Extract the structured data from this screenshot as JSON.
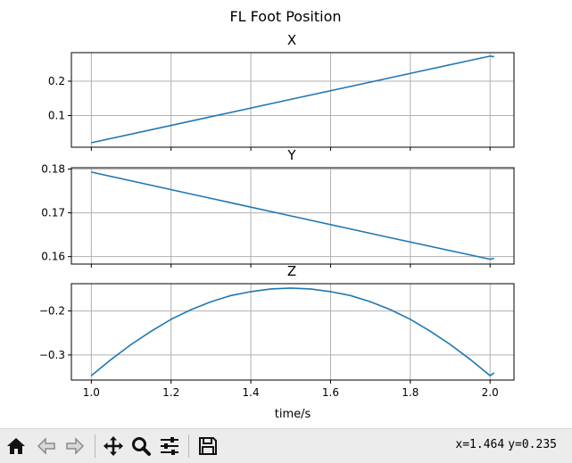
{
  "figure": {
    "suptitle": "FL Foot Position",
    "xlabel": "time/s"
  },
  "chart_data": [
    {
      "type": "line",
      "title": "X",
      "xlabel": "",
      "ylabel": "",
      "xlim": [
        0.95,
        2.06
      ],
      "ylim": [
        0.008,
        0.283
      ],
      "xticks": [
        1.0,
        1.2,
        1.4,
        1.6,
        1.8,
        2.0
      ],
      "yticks": [
        0.1,
        0.2
      ],
      "ytick_labels": [
        "0.1",
        "0.2"
      ],
      "grid": true,
      "series": [
        {
          "color": "#1f77b4",
          "x": [
            1.0,
            1.25,
            1.5,
            1.75,
            2.0,
            2.01
          ],
          "y": [
            0.021,
            0.084,
            0.147,
            0.21,
            0.273,
            0.271
          ]
        }
      ]
    },
    {
      "type": "line",
      "title": "Y",
      "xlabel": "",
      "ylabel": "",
      "xlim": [
        0.95,
        2.06
      ],
      "ylim": [
        0.1583,
        0.1803
      ],
      "xticks": [
        1.0,
        1.2,
        1.4,
        1.6,
        1.8,
        2.0
      ],
      "yticks": [
        0.16,
        0.17,
        0.18
      ],
      "ytick_labels": [
        "0.16",
        "0.17",
        "0.18"
      ],
      "grid": true,
      "series": [
        {
          "color": "#1f77b4",
          "x": [
            1.0,
            1.25,
            1.5,
            1.75,
            2.0,
            2.01
          ],
          "y": [
            0.1793,
            0.1743,
            0.1693,
            0.1643,
            0.1594,
            0.1596
          ]
        }
      ]
    },
    {
      "type": "line",
      "title": "Z",
      "xlabel": "time/s",
      "ylabel": "",
      "xlim": [
        0.95,
        2.06
      ],
      "ylim": [
        -0.357,
        -0.138
      ],
      "xticks": [
        1.0,
        1.2,
        1.4,
        1.6,
        1.8,
        2.0
      ],
      "xtick_labels": [
        "1.0",
        "1.2",
        "1.4",
        "1.6",
        "1.8",
        "2.0"
      ],
      "yticks": [
        -0.3,
        -0.2
      ],
      "ytick_labels": [
        "−0.3",
        "−0.2"
      ],
      "grid": true,
      "series": [
        {
          "color": "#1f77b4",
          "x": [
            1.0,
            1.05,
            1.1,
            1.15,
            1.2,
            1.25,
            1.3,
            1.35,
            1.4,
            1.45,
            1.5,
            1.55,
            1.6,
            1.65,
            1.7,
            1.75,
            1.8,
            1.85,
            1.9,
            1.95,
            2.0,
            2.01
          ],
          "y": [
            -0.347,
            -0.31,
            -0.276,
            -0.246,
            -0.219,
            -0.197,
            -0.179,
            -0.165,
            -0.156,
            -0.15,
            -0.148,
            -0.15,
            -0.156,
            -0.165,
            -0.179,
            -0.197,
            -0.219,
            -0.246,
            -0.276,
            -0.31,
            -0.347,
            -0.341
          ]
        }
      ]
    }
  ],
  "toolbar": {
    "buttons": [
      {
        "name": "home-button",
        "icon": "home-icon"
      },
      {
        "name": "back-button",
        "icon": "back-arrow-icon"
      },
      {
        "name": "forward-button",
        "icon": "forward-arrow-icon"
      },
      {
        "name": "pan-button",
        "icon": "pan-move-icon"
      },
      {
        "name": "zoom-button",
        "icon": "zoom-magnifier-icon"
      },
      {
        "name": "configure-subplots-button",
        "icon": "sliders-icon"
      },
      {
        "name": "save-button",
        "icon": "floppy-disk-icon"
      }
    ],
    "coords": {
      "x": "x=1.464",
      "y": "y=0.235"
    }
  }
}
